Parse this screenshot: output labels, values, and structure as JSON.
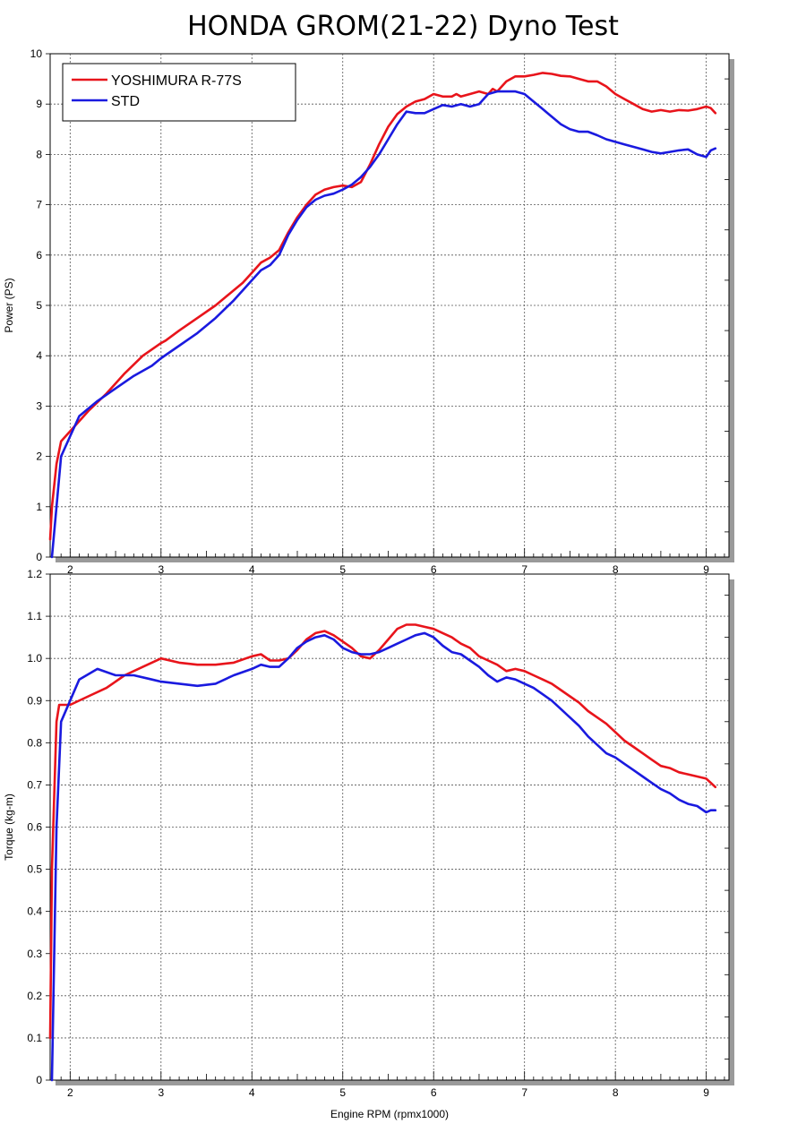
{
  "title": "HONDA GROM(21-22) Dyno Test",
  "xlabel": "Engine RPM (rpmx1000)",
  "colors": {
    "yoshimura": "#e8141b",
    "std": "#1a1adf",
    "grid": "#555555"
  },
  "chart_data": [
    {
      "type": "line",
      "ylabel": "Power (PS)",
      "xlim": [
        1.78,
        9.25
      ],
      "ylim": [
        0,
        10
      ],
      "xticks": [
        "2",
        "3",
        "4",
        "5",
        "6",
        "7",
        "8",
        "9"
      ],
      "yticks": [
        "0",
        "1",
        "2",
        "3",
        "4",
        "5",
        "6",
        "7",
        "8",
        "9",
        "10"
      ],
      "grid": true,
      "legend": "top-left",
      "series": [
        {
          "name": "YOSHIMURA R-77S",
          "x": [
            1.78,
            1.8,
            1.85,
            1.9,
            2.0,
            2.1,
            2.2,
            2.4,
            2.6,
            2.8,
            3.0,
            3.05,
            3.2,
            3.4,
            3.6,
            3.8,
            3.9,
            4.0,
            4.1,
            4.2,
            4.3,
            4.4,
            4.5,
            4.6,
            4.7,
            4.8,
            4.9,
            5.0,
            5.1,
            5.2,
            5.3,
            5.4,
            5.5,
            5.6,
            5.7,
            5.8,
            5.9,
            6.0,
            6.1,
            6.2,
            6.25,
            6.3,
            6.4,
            6.5,
            6.6,
            6.65,
            6.7,
            6.8,
            6.9,
            7.0,
            7.1,
            7.2,
            7.3,
            7.4,
            7.5,
            7.6,
            7.7,
            7.8,
            7.9,
            8.0,
            8.1,
            8.2,
            8.3,
            8.4,
            8.5,
            8.6,
            8.7,
            8.8,
            8.9,
            9.0,
            9.05,
            9.1
          ],
          "y": [
            0.35,
            1.0,
            1.85,
            2.3,
            2.5,
            2.7,
            2.9,
            3.25,
            3.65,
            4.0,
            4.25,
            4.3,
            4.5,
            4.75,
            5.0,
            5.3,
            5.45,
            5.65,
            5.85,
            5.95,
            6.1,
            6.45,
            6.75,
            7.0,
            7.2,
            7.3,
            7.35,
            7.38,
            7.35,
            7.45,
            7.8,
            8.2,
            8.55,
            8.8,
            8.95,
            9.05,
            9.1,
            9.2,
            9.15,
            9.15,
            9.2,
            9.15,
            9.2,
            9.25,
            9.2,
            9.3,
            9.25,
            9.45,
            9.55,
            9.55,
            9.58,
            9.62,
            9.6,
            9.56,
            9.55,
            9.5,
            9.45,
            9.45,
            9.35,
            9.2,
            9.1,
            9.0,
            8.9,
            8.85,
            8.88,
            8.85,
            8.88,
            8.87,
            8.9,
            8.95,
            8.92,
            8.82
          ]
        },
        {
          "name": "STD",
          "x": [
            1.8,
            1.85,
            1.9,
            2.0,
            2.1,
            2.3,
            2.5,
            2.7,
            2.9,
            3.0,
            3.2,
            3.4,
            3.6,
            3.8,
            4.0,
            4.1,
            4.2,
            4.3,
            4.4,
            4.5,
            4.6,
            4.7,
            4.8,
            4.9,
            5.0,
            5.1,
            5.2,
            5.3,
            5.4,
            5.5,
            5.6,
            5.7,
            5.8,
            5.9,
            6.0,
            6.1,
            6.2,
            6.3,
            6.4,
            6.5,
            6.6,
            6.7,
            6.8,
            6.9,
            7.0,
            7.1,
            7.2,
            7.3,
            7.4,
            7.5,
            7.6,
            7.7,
            7.8,
            7.9,
            8.0,
            8.1,
            8.2,
            8.3,
            8.4,
            8.5,
            8.6,
            8.7,
            8.8,
            8.9,
            9.0,
            9.05,
            9.1
          ],
          "y": [
            0.0,
            1.0,
            2.0,
            2.4,
            2.8,
            3.1,
            3.35,
            3.6,
            3.8,
            3.95,
            4.2,
            4.45,
            4.75,
            5.1,
            5.5,
            5.7,
            5.8,
            6.0,
            6.4,
            6.7,
            6.95,
            7.1,
            7.18,
            7.22,
            7.3,
            7.4,
            7.55,
            7.75,
            8.0,
            8.3,
            8.6,
            8.85,
            8.82,
            8.82,
            8.9,
            8.98,
            8.95,
            9.0,
            8.95,
            9.0,
            9.2,
            9.25,
            9.25,
            9.25,
            9.2,
            9.05,
            8.9,
            8.75,
            8.6,
            8.5,
            8.45,
            8.45,
            8.38,
            8.3,
            8.25,
            8.2,
            8.15,
            8.1,
            8.05,
            8.02,
            8.05,
            8.08,
            8.1,
            8.0,
            7.95,
            8.08,
            8.12
          ]
        }
      ]
    },
    {
      "type": "line",
      "ylabel": "Torque (kg-m)",
      "xlim": [
        1.78,
        9.25
      ],
      "ylim": [
        0,
        1.2
      ],
      "xticks": [
        "2",
        "3",
        "4",
        "5",
        "6",
        "7",
        "8",
        "9"
      ],
      "yticks": [
        "0",
        "0.1",
        "0.2",
        "0.3",
        "0.4",
        "0.5",
        "0.6",
        "0.7",
        "0.8",
        "0.9",
        "1.0",
        "1.1",
        "1.2"
      ],
      "grid": true,
      "series": [
        {
          "name": "YOSHIMURA R-77S",
          "x": [
            1.78,
            1.8,
            1.85,
            1.88,
            2.0,
            2.2,
            2.4,
            2.6,
            2.8,
            3.0,
            3.2,
            3.4,
            3.6,
            3.8,
            4.0,
            4.1,
            4.2,
            4.3,
            4.4,
            4.5,
            4.6,
            4.7,
            4.8,
            4.9,
            5.0,
            5.1,
            5.2,
            5.3,
            5.4,
            5.5,
            5.6,
            5.7,
            5.8,
            5.9,
            6.0,
            6.1,
            6.2,
            6.3,
            6.4,
            6.5,
            6.6,
            6.7,
            6.8,
            6.9,
            7.0,
            7.1,
            7.2,
            7.3,
            7.4,
            7.5,
            7.6,
            7.7,
            7.8,
            7.9,
            8.0,
            8.1,
            8.2,
            8.3,
            8.4,
            8.5,
            8.6,
            8.7,
            8.8,
            8.9,
            9.0,
            9.05,
            9.1
          ],
          "y": [
            0.1,
            0.5,
            0.85,
            0.89,
            0.89,
            0.91,
            0.93,
            0.96,
            0.98,
            1.0,
            0.99,
            0.985,
            0.985,
            0.99,
            1.005,
            1.01,
            0.995,
            0.995,
            1.0,
            1.02,
            1.045,
            1.06,
            1.065,
            1.055,
            1.04,
            1.025,
            1.005,
            1.0,
            1.02,
            1.045,
            1.07,
            1.08,
            1.08,
            1.075,
            1.07,
            1.06,
            1.05,
            1.035,
            1.025,
            1.005,
            0.995,
            0.985,
            0.97,
            0.975,
            0.97,
            0.96,
            0.95,
            0.94,
            0.925,
            0.91,
            0.895,
            0.875,
            0.86,
            0.845,
            0.825,
            0.805,
            0.79,
            0.775,
            0.76,
            0.745,
            0.74,
            0.73,
            0.725,
            0.72,
            0.715,
            0.705,
            0.695
          ]
        },
        {
          "name": "STD",
          "x": [
            1.8,
            1.85,
            1.9,
            2.0,
            2.1,
            2.3,
            2.5,
            2.7,
            2.9,
            3.0,
            3.2,
            3.4,
            3.6,
            3.8,
            4.0,
            4.1,
            4.2,
            4.3,
            4.4,
            4.5,
            4.6,
            4.7,
            4.8,
            4.9,
            5.0,
            5.1,
            5.2,
            5.3,
            5.4,
            5.5,
            5.6,
            5.7,
            5.8,
            5.9,
            6.0,
            6.1,
            6.2,
            6.3,
            6.4,
            6.5,
            6.6,
            6.7,
            6.8,
            6.9,
            7.0,
            7.1,
            7.2,
            7.3,
            7.4,
            7.5,
            7.6,
            7.7,
            7.8,
            7.9,
            8.0,
            8.1,
            8.2,
            8.3,
            8.4,
            8.5,
            8.6,
            8.7,
            8.8,
            8.9,
            9.0,
            9.05,
            9.1
          ],
          "y": [
            0.0,
            0.6,
            0.85,
            0.9,
            0.95,
            0.975,
            0.96,
            0.96,
            0.95,
            0.945,
            0.94,
            0.935,
            0.94,
            0.96,
            0.975,
            0.985,
            0.98,
            0.98,
            1.0,
            1.025,
            1.04,
            1.05,
            1.055,
            1.045,
            1.025,
            1.015,
            1.01,
            1.01,
            1.015,
            1.025,
            1.035,
            1.045,
            1.055,
            1.06,
            1.05,
            1.03,
            1.015,
            1.01,
            0.995,
            0.98,
            0.96,
            0.945,
            0.955,
            0.95,
            0.94,
            0.93,
            0.915,
            0.9,
            0.88,
            0.86,
            0.84,
            0.815,
            0.795,
            0.775,
            0.765,
            0.75,
            0.735,
            0.72,
            0.705,
            0.69,
            0.68,
            0.665,
            0.655,
            0.65,
            0.635,
            0.64,
            0.64
          ]
        }
      ]
    }
  ]
}
